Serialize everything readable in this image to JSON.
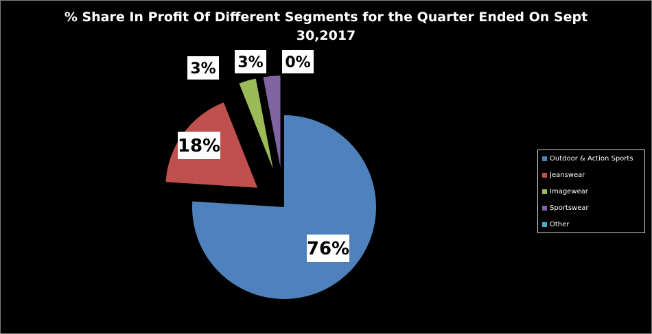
{
  "chart_data": {
    "type": "pie",
    "title": "% Share In Profit Of Different Segments for the Quarter Ended On Sept 30,2017",
    "title_lines": [
      "% Share In Profit Of Different Segments for the Quarter Ended On Sept",
      "30,2017"
    ],
    "slices": [
      {
        "name": "Outdoor & Action Sports",
        "value": 76,
        "label": "76%",
        "color": "#4f81bd"
      },
      {
        "name": "Jeanswear",
        "value": 18,
        "label": "18%",
        "color": "#c0504d"
      },
      {
        "name": "Imagewear",
        "value": 3,
        "label": "3%",
        "color": "#9bbb59"
      },
      {
        "name": "Sportswear",
        "value": 3,
        "label": "3%",
        "color": "#8064a2"
      },
      {
        "name": "Other",
        "value": 0,
        "label": "0%",
        "color": "#4bacc6"
      }
    ],
    "legend_position": "right",
    "data_labels": "outside-boxed"
  }
}
